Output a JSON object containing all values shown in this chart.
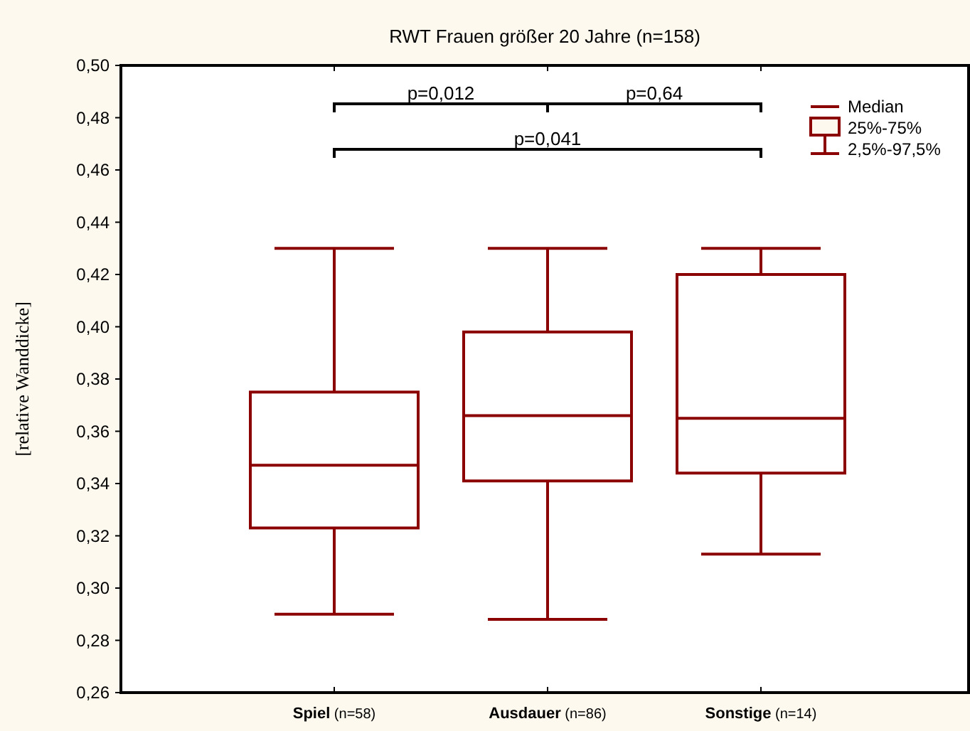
{
  "chart_data": {
    "type": "box",
    "title": "RWT Frauen größer 20 Jahre (n=158)",
    "ylabel": "[relative Wanddicke]",
    "categories": [
      "Spiel (n=58)",
      "Ausdauer (n=86)",
      "Sonstige (n=14)"
    ],
    "series": [
      {
        "color": "#8b0000",
        "boxes": [
          {
            "low": 0.29,
            "q1": 0.323,
            "median": 0.347,
            "q3": 0.375,
            "high": 0.43
          },
          {
            "low": 0.288,
            "q1": 0.341,
            "median": 0.366,
            "q3": 0.398,
            "high": 0.43
          },
          {
            "low": 0.313,
            "q1": 0.344,
            "median": 0.365,
            "q3": 0.42,
            "high": 0.43
          }
        ]
      }
    ],
    "ylim": [
      0.26,
      0.5
    ],
    "yticks": [
      {
        "value": 0.26,
        "label": "0,26"
      },
      {
        "value": 0.28,
        "label": "0,28"
      },
      {
        "value": 0.3,
        "label": "0,30"
      },
      {
        "value": 0.32,
        "label": "0,32"
      },
      {
        "value": 0.34,
        "label": "0,34"
      },
      {
        "value": 0.36,
        "label": "0,36"
      },
      {
        "value": 0.38,
        "label": "0,38"
      },
      {
        "value": 0.4,
        "label": "0,40"
      },
      {
        "value": 0.42,
        "label": "0,42"
      },
      {
        "value": 0.44,
        "label": "0,44"
      },
      {
        "value": 0.46,
        "label": "0,46"
      },
      {
        "value": 0.48,
        "label": "0,48"
      },
      {
        "value": 0.5,
        "label": "0,50"
      }
    ],
    "annotations": [
      "p=0,012",
      "p=0,64",
      "p=0,041",
      "Median",
      "25%-75%",
      "2,5%-97,5%"
    ],
    "grid": false
  }
}
